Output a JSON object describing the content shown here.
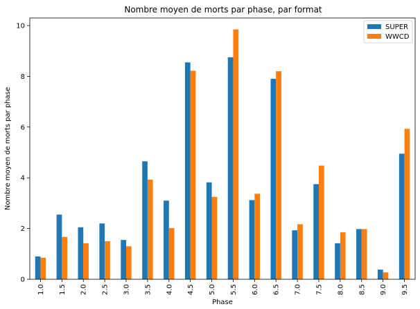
{
  "chart_data": {
    "type": "bar",
    "title": "Nombre moyen de morts par phase, par format",
    "xlabel": "Phase",
    "ylabel": "Nombre moyen de morts par phase",
    "categories": [
      "1.0",
      "1.5",
      "2.0",
      "2.5",
      "3.0",
      "3.5",
      "4.0",
      "4.5",
      "5.0",
      "5.5",
      "6.0",
      "6.5",
      "7.0",
      "7.5",
      "8.0",
      "8.5",
      "9.0",
      "9.5"
    ],
    "series": [
      {
        "name": "SUPER",
        "color": "#1f77b4",
        "values": [
          0.9,
          2.55,
          2.05,
          2.2,
          1.55,
          4.65,
          3.1,
          8.55,
          3.82,
          8.75,
          3.12,
          7.9,
          1.93,
          3.75,
          1.42,
          1.98,
          0.38,
          4.95
        ]
      },
      {
        "name": "WWCD",
        "color": "#ff7f0e",
        "values": [
          0.85,
          1.67,
          1.42,
          1.5,
          1.3,
          3.93,
          2.02,
          8.22,
          3.25,
          9.85,
          3.37,
          8.2,
          2.17,
          4.48,
          1.85,
          1.98,
          0.27,
          5.93
        ]
      }
    ],
    "ylim": [
      0,
      10.3
    ],
    "yticks": [
      0,
      2,
      4,
      6,
      8,
      10
    ],
    "grid": false,
    "legend": "top-right"
  }
}
